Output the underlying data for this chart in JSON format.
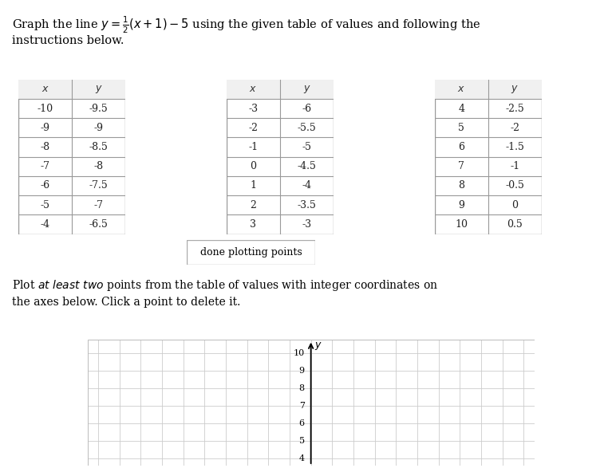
{
  "table1": {
    "x": [
      -10,
      -9,
      -8,
      -7,
      -6,
      -5,
      -4
    ],
    "y": [
      -9.5,
      -9,
      -8.5,
      -8,
      -7.5,
      -7,
      -6.5
    ]
  },
  "table2": {
    "x": [
      -3,
      -2,
      -1,
      0,
      1,
      2,
      3
    ],
    "y": [
      -6,
      -5.5,
      -5,
      -4.5,
      -4,
      -3.5,
      -3
    ]
  },
  "table3": {
    "x": [
      4,
      5,
      6,
      7,
      8,
      9,
      10
    ],
    "y": [
      -2.5,
      -2,
      -1.5,
      -1,
      -0.5,
      0,
      0.5
    ]
  },
  "button_text": "done plotting points",
  "bg_color": "#ffffff",
  "grid_color": "#cccccc",
  "text_color": "#000000",
  "table_line_color": "#999999",
  "header_bg": "#f0f0f0",
  "fig_width": 7.67,
  "fig_height": 5.87,
  "fig_dpi": 100
}
